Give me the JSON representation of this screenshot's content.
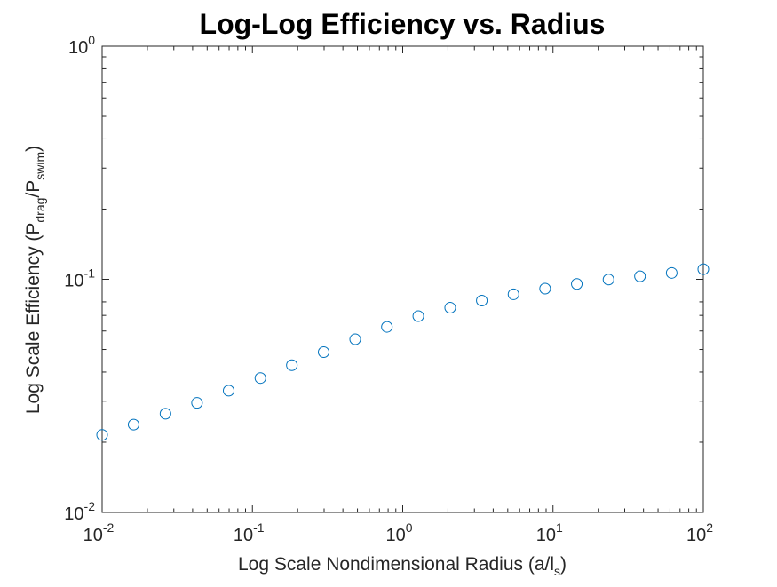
{
  "chart_data": {
    "type": "scatter",
    "title": "Log-Log Efficiency vs. Radius",
    "xlabel": {
      "prefix": "Log Scale Nondimensional Radius (a/l",
      "sub": "s",
      "suffix": ")"
    },
    "ylabel": {
      "prefix": "Log Scale Efficiency (P",
      "sub1": "drag",
      "mid": "/P",
      "sub2": "swim",
      "suffix": ")"
    },
    "xscale": "log",
    "yscale": "log",
    "xlim": [
      0.01,
      100
    ],
    "ylim": [
      0.01,
      1
    ],
    "grid": false,
    "x_ticks": [
      {
        "base": "10",
        "exp": "-2"
      },
      {
        "base": "10",
        "exp": "-1"
      },
      {
        "base": "10",
        "exp": "0"
      },
      {
        "base": "10",
        "exp": "1"
      },
      {
        "base": "10",
        "exp": "2"
      }
    ],
    "y_ticks": [
      {
        "base": "10",
        "exp": "-2"
      },
      {
        "base": "10",
        "exp": "-1"
      },
      {
        "base": "10",
        "exp": "0"
      }
    ],
    "marker": "circle-open",
    "marker_color": "#0072BD",
    "x": [
      0.01,
      0.0162,
      0.0264,
      0.0428,
      0.0695,
      0.113,
      0.183,
      0.298,
      0.483,
      0.785,
      1.27,
      2.07,
      3.36,
      5.46,
      8.86,
      14.4,
      23.4,
      37.9,
      61.6,
      100
    ],
    "y": [
      0.0215,
      0.0238,
      0.0265,
      0.0295,
      0.0333,
      0.0377,
      0.0428,
      0.0487,
      0.0553,
      0.0625,
      0.0695,
      0.0755,
      0.081,
      0.0862,
      0.0912,
      0.0955,
      0.0998,
      0.103,
      0.1065,
      0.1105
    ]
  }
}
